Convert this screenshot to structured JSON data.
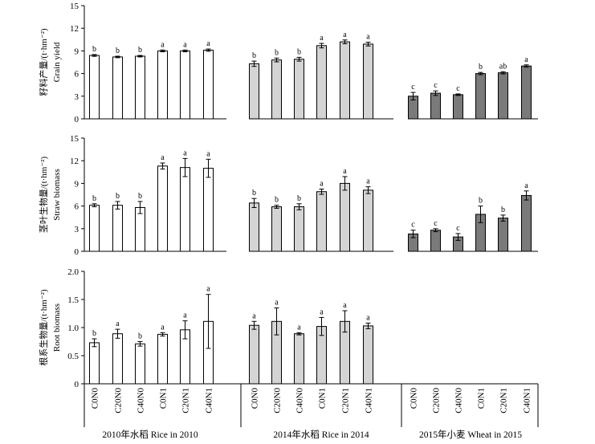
{
  "chart_data": {
    "type": "bar",
    "groups": [
      {
        "label": "2010年水稻 Rice in 2010",
        "fill": "#ffffff"
      },
      {
        "label": "2014年水稻 Rice in 2014",
        "fill": "#d4d4d4"
      },
      {
        "label": "2015年小麦 Wheat in 2015",
        "fill": "#7a7a7a"
      }
    ],
    "categories": [
      "C0N0",
      "C20N0",
      "C40N0",
      "C0N1",
      "C20N1",
      "C40N1"
    ],
    "panels": [
      {
        "ylabel_cn": "籽料产量/(t·hm⁻²)",
        "ylabel_en": "Grain yield",
        "ylim": [
          0,
          15
        ],
        "yticks": [
          "0",
          "3",
          "6",
          "9",
          "12",
          "15"
        ],
        "series": [
          {
            "values": [
              8.4,
              8.2,
              8.3,
              9.0,
              9.0,
              9.1
            ],
            "errors": [
              0.12,
              0.1,
              0.1,
              0.12,
              0.12,
              0.15
            ],
            "letters": [
              "b",
              "b",
              "b",
              "a",
              "a",
              "a"
            ]
          },
          {
            "values": [
              7.3,
              7.8,
              7.9,
              9.7,
              10.2,
              9.9
            ],
            "errors": [
              0.35,
              0.25,
              0.25,
              0.3,
              0.25,
              0.25
            ],
            "letters": [
              "b",
              "b",
              "b",
              "a",
              "a",
              "a"
            ]
          },
          {
            "values": [
              3.0,
              3.4,
              3.2,
              6.0,
              6.1,
              7.0
            ],
            "errors": [
              0.5,
              0.3,
              0.1,
              0.15,
              0.15,
              0.15
            ],
            "letters": [
              "c",
              "c",
              "c",
              "b",
              "ab",
              "a"
            ]
          }
        ]
      },
      {
        "ylabel_cn": "茎叶生物量/(t·hm⁻²)",
        "ylabel_en": "Straw biomass",
        "ylim": [
          0,
          15
        ],
        "yticks": [
          "0",
          "3",
          "6",
          "9",
          "12",
          "15"
        ],
        "series": [
          {
            "values": [
              6.1,
              6.1,
              5.8,
              11.3,
              11.1,
              11.0
            ],
            "errors": [
              0.2,
              0.5,
              0.8,
              0.4,
              1.2,
              1.2
            ],
            "letters": [
              "b",
              "b",
              "b",
              "a",
              "a",
              "a"
            ]
          },
          {
            "values": [
              6.4,
              5.9,
              5.9,
              7.9,
              9.0,
              8.1
            ],
            "errors": [
              0.6,
              0.2,
              0.4,
              0.35,
              0.9,
              0.45
            ],
            "letters": [
              "b",
              "b",
              "b",
              "a",
              "a",
              "a"
            ]
          },
          {
            "values": [
              2.3,
              2.8,
              1.9,
              4.9,
              4.4,
              7.4
            ],
            "errors": [
              0.5,
              0.2,
              0.45,
              1.1,
              0.4,
              0.6
            ],
            "letters": [
              "c",
              "c",
              "c",
              "b",
              "b",
              "a"
            ]
          }
        ]
      },
      {
        "ylabel_cn": "根系生物量/(t·hm⁻²)",
        "ylabel_en": "Root biomass",
        "ylim": [
          0,
          2.0
        ],
        "yticks": [
          "0",
          "0.5",
          "1.0",
          "1.5",
          "2.0"
        ],
        "series": [
          {
            "values": [
              0.73,
              0.89,
              0.71,
              0.88,
              0.96,
              1.11
            ],
            "errors": [
              0.07,
              0.08,
              0.04,
              0.03,
              0.16,
              0.48
            ],
            "letters": [
              "b",
              "a",
              "b",
              "a",
              "a",
              "a"
            ]
          },
          {
            "values": [
              1.04,
              1.11,
              0.89,
              1.02,
              1.11,
              1.03
            ],
            "errors": [
              0.07,
              0.24,
              0.02,
              0.16,
              0.19,
              0.05
            ],
            "letters": [
              "a",
              "a",
              "a",
              "a",
              "a",
              "a"
            ]
          },
          {
            "values": null,
            "errors": null,
            "letters": null
          }
        ]
      }
    ]
  }
}
